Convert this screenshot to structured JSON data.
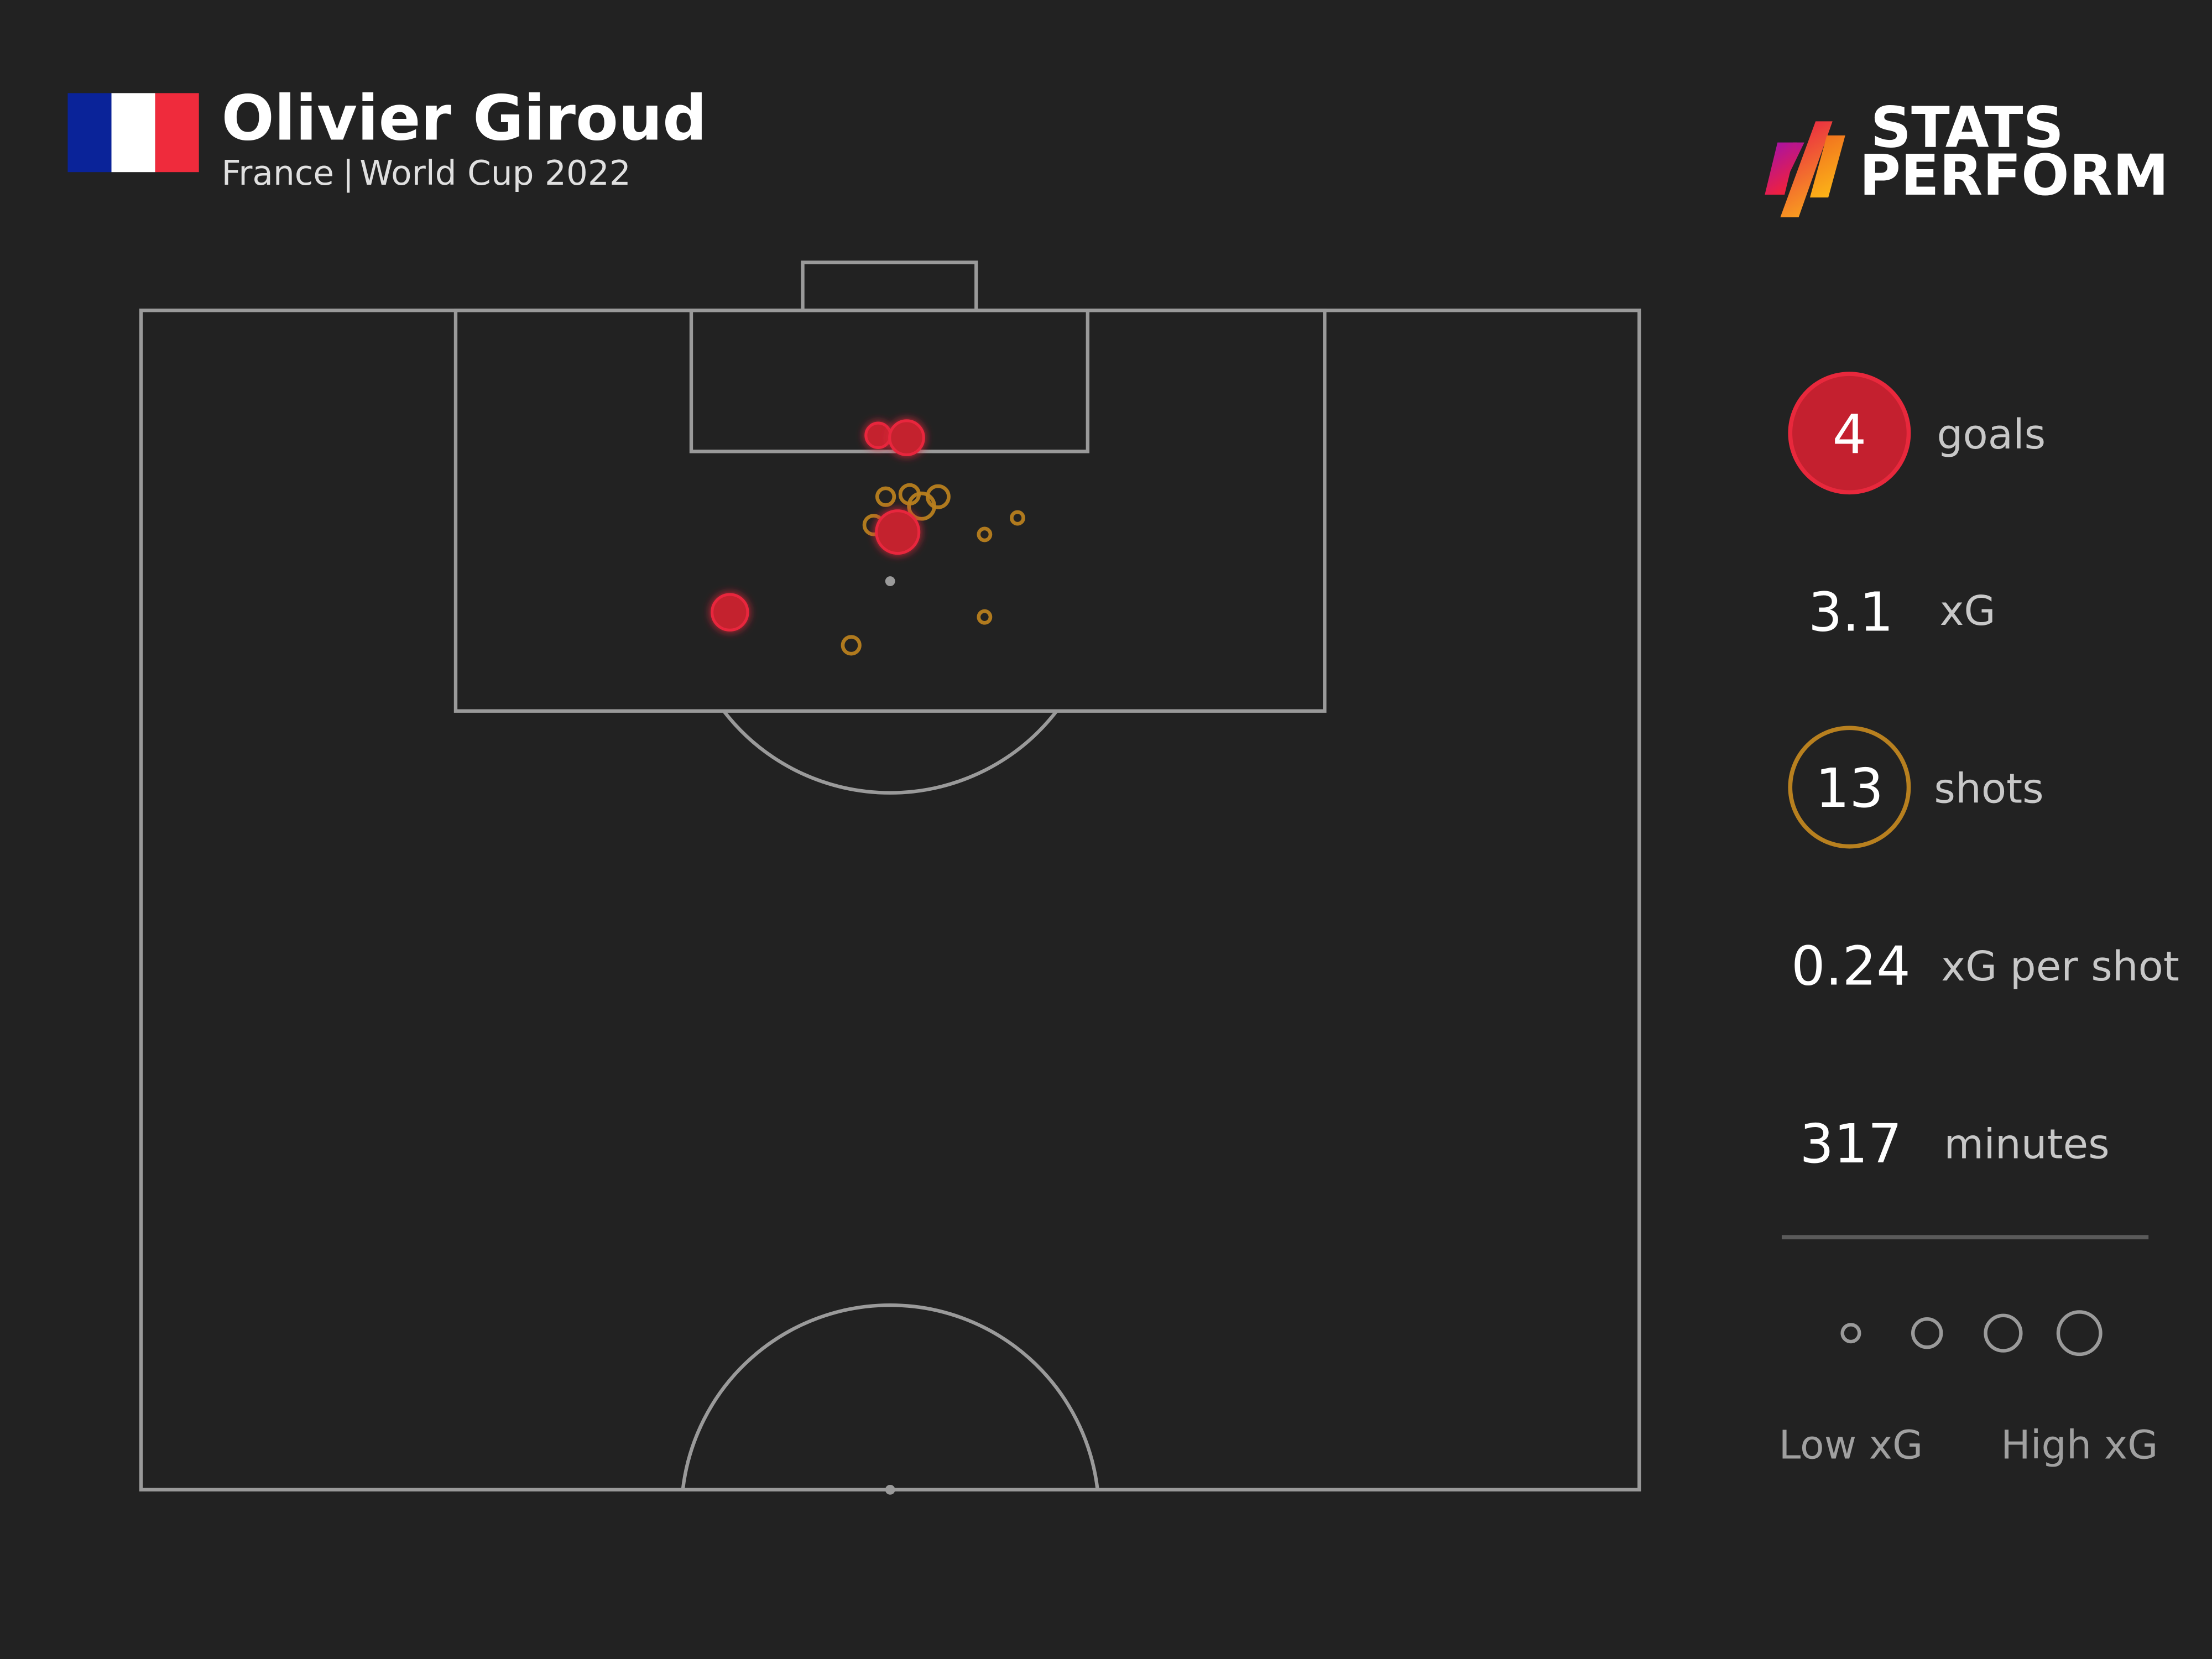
{
  "header": {
    "player": "Olivier Giroud",
    "team": "France",
    "competition": "World Cup 2022",
    "separator": "|",
    "flag_colors": [
      "#0a2399",
      "#ffffff",
      "#ef2b3c"
    ]
  },
  "logo": {
    "line1": "STATS",
    "line2": "PERFORM"
  },
  "stats": [
    {
      "value": "4",
      "label": "goals",
      "badge": "filled"
    },
    {
      "value": "3.1",
      "label": "xG",
      "badge": "none"
    },
    {
      "value": "13",
      "label": "shots",
      "badge": "outline"
    },
    {
      "value": "0.24",
      "label": "xG per shot",
      "badge": "none"
    },
    {
      "value": "317",
      "label": "minutes",
      "badge": "none"
    }
  ],
  "legend": {
    "low_label": "Low xG",
    "high_label": "High xG"
  },
  "colors": {
    "background": "#222222",
    "goal": "#c4202f",
    "goal_stroke": "#e8283c",
    "miss": "#b8801f",
    "pitch_lines": "#9a9a9a"
  },
  "chart_data": {
    "type": "scatter",
    "description_units": "x = pitch width position (0-100, left to right), y = distance from goal line in pitch-length units (0-100 scale, half pitch = 50), xg = expected goals (marker size)",
    "shots": [
      {
        "x": 49.2,
        "y": 5.3,
        "xg": 0.2,
        "outcome": "goal"
      },
      {
        "x": 51.1,
        "y": 5.4,
        "xg": 0.45,
        "outcome": "goal"
      },
      {
        "x": 50.5,
        "y": 9.4,
        "xg": 0.76,
        "outcome": "goal"
      },
      {
        "x": 39.3,
        "y": 12.8,
        "xg": 0.5,
        "outcome": "goal"
      },
      {
        "x": 49.7,
        "y": 7.9,
        "xg": 0.12,
        "outcome": "miss"
      },
      {
        "x": 51.3,
        "y": 7.8,
        "xg": 0.15,
        "outcome": "miss"
      },
      {
        "x": 52.1,
        "y": 8.3,
        "xg": 0.3,
        "outcome": "miss"
      },
      {
        "x": 53.2,
        "y": 7.9,
        "xg": 0.2,
        "outcome": "miss"
      },
      {
        "x": 48.9,
        "y": 9.1,
        "xg": 0.15,
        "outcome": "miss"
      },
      {
        "x": 56.3,
        "y": 9.5,
        "xg": 0.05,
        "outcome": "miss"
      },
      {
        "x": 58.5,
        "y": 8.8,
        "xg": 0.05,
        "outcome": "miss"
      },
      {
        "x": 56.3,
        "y": 13.0,
        "xg": 0.05,
        "outcome": "miss"
      },
      {
        "x": 47.4,
        "y": 14.2,
        "xg": 0.12,
        "outcome": "miss"
      }
    ]
  }
}
